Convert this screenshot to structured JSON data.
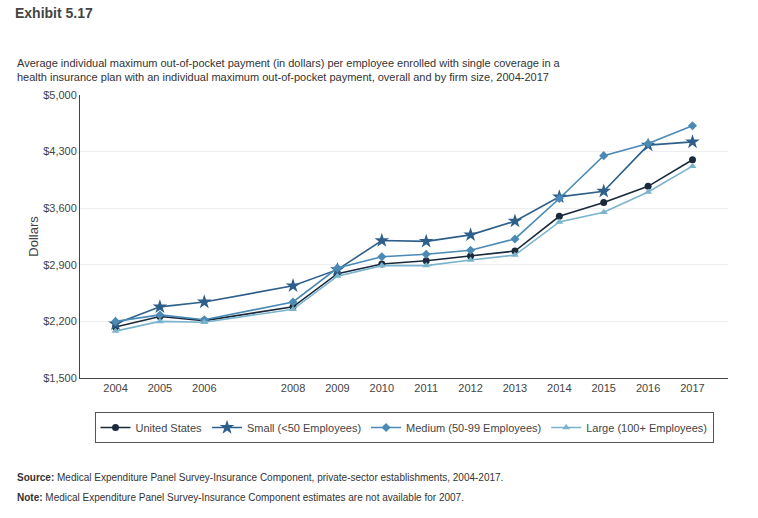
{
  "chart_data": {
    "type": "line",
    "title": "Exhibit 5.17",
    "subtitle": [
      "Average individual maximum out-of-pocket payment (in dollars) per employee enrolled with single coverage in a",
      "health insurance plan with an individual maximum out-of-pocket payment, overall and by firm size, 2004-2017"
    ],
    "y_label": "Dollars",
    "x": [
      2004,
      2005,
      2006,
      2008,
      2009,
      2010,
      2011,
      2012,
      2013,
      2014,
      2015,
      2016,
      2017
    ],
    "series": [
      {
        "name": "United States",
        "color": "#1b2a3b",
        "marker": "circle",
        "values": [
          2130,
          2260,
          2210,
          2380,
          2790,
          2910,
          2950,
          3010,
          3070,
          3500,
          3670,
          3870,
          4200
        ]
      },
      {
        "name": "Small (<50 Employees)",
        "color": "#2d5f8a",
        "marker": "star",
        "values": [
          2170,
          2380,
          2440,
          2640,
          2840,
          3200,
          3190,
          3270,
          3440,
          3740,
          3810,
          4380,
          4420
        ]
      },
      {
        "name": "Medium (50-99 Employees)",
        "color": "#4a8ab5",
        "marker": "diamond",
        "values": [
          2200,
          2280,
          2220,
          2440,
          2860,
          3000,
          3030,
          3080,
          3220,
          3720,
          4250,
          4400,
          4620
        ]
      },
      {
        "name": "Large (100+ Employees)",
        "color": "#7ab3cc",
        "marker": "triangle-up",
        "values": [
          2080,
          2200,
          2190,
          2350,
          2760,
          2890,
          2890,
          2960,
          3020,
          3430,
          3550,
          3800,
          4120
        ]
      }
    ],
    "xlim": [
      2003.2,
      2017.8
    ],
    "xticks": [
      2004,
      2005,
      2006,
      2008,
      2009,
      2010,
      2011,
      2012,
      2013,
      2014,
      2015,
      2016,
      2017
    ],
    "ylim": [
      1500,
      5000
    ],
    "yticks": [
      {
        "value": 1500,
        "label": "$1,500"
      },
      {
        "value": 2200,
        "label": "$2,200"
      },
      {
        "value": 2900,
        "label": "$2,900"
      },
      {
        "value": 3600,
        "label": "$3,600"
      },
      {
        "value": 4300,
        "label": "$4,300"
      },
      {
        "value": 5000,
        "label": "$5,000"
      }
    ],
    "grid": true,
    "legend": "bottom",
    "annotations": [
      "Source: Medical Expenditure Panel Survey-Insurance Component, private-sector establishments, 2004-2017.",
      "Note: Medical Expenditure Panel Survey-Insurance Component estimates are not available for 2007."
    ]
  }
}
